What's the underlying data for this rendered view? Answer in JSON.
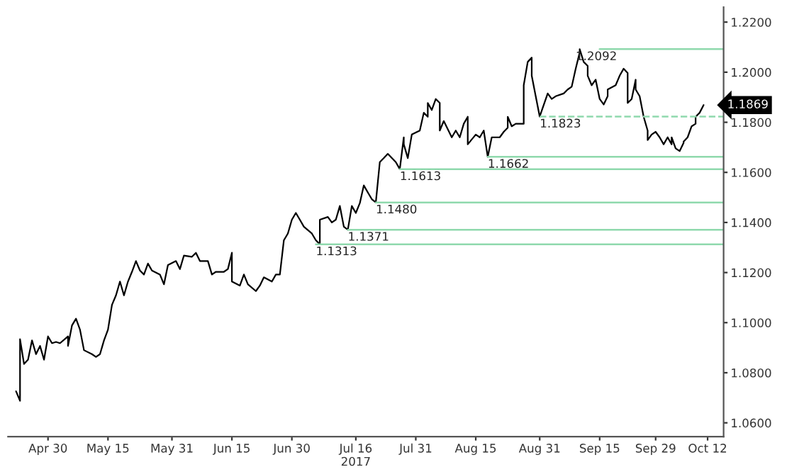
{
  "chart_data": {
    "type": "line",
    "xlim": [
      "2017-04-20",
      "2017-10-16"
    ],
    "ylim": [
      1.0545,
      1.226
    ],
    "xticks": [
      {
        "value": "2017-04-30",
        "label": "Apr 30"
      },
      {
        "value": "2017-05-15",
        "label": "May 15"
      },
      {
        "value": "2017-05-31",
        "label": "May 31"
      },
      {
        "value": "2017-06-15",
        "label": "Jun 15"
      },
      {
        "value": "2017-06-30",
        "label": "Jun 30"
      },
      {
        "value": "2017-07-16",
        "label": "Jul 16\n2017"
      },
      {
        "value": "2017-07-31",
        "label": "Jul 31"
      },
      {
        "value": "2017-08-15",
        "label": "Aug 15"
      },
      {
        "value": "2017-08-31",
        "label": "Aug 31"
      },
      {
        "value": "2017-09-15",
        "label": "Sep 15"
      },
      {
        "value": "2017-09-29",
        "label": "Sep 29"
      },
      {
        "value": "2017-10-12",
        "label": "Oct 12"
      }
    ],
    "yticks": [
      {
        "value": 1.06,
        "label": "1.0600"
      },
      {
        "value": 1.08,
        "label": "1.0800"
      },
      {
        "value": 1.1,
        "label": "1.1000"
      },
      {
        "value": 1.12,
        "label": "1.1200"
      },
      {
        "value": 1.14,
        "label": "1.1400"
      },
      {
        "value": 1.16,
        "label": "1.1600"
      },
      {
        "value": 1.18,
        "label": "1.1800"
      },
      {
        "value": 1.2,
        "label": "1.2000"
      },
      {
        "value": 1.22,
        "label": "1.2200"
      }
    ],
    "grid": false,
    "legend": false,
    "marker": "none",
    "series": [
      {
        "color": "#000000",
        "line_style": "solid",
        "x": [
          "2017-04-22",
          "2017-04-23",
          "2017-04-23",
          "2017-04-24",
          "2017-04-25",
          "2017-04-26",
          "2017-04-27",
          "2017-04-28",
          "2017-04-29",
          "2017-04-30",
          "2017-05-01",
          "2017-05-02",
          "2017-05-03",
          "2017-05-05",
          "2017-05-05",
          "2017-05-06",
          "2017-05-07",
          "2017-05-08",
          "2017-05-09",
          "2017-05-11",
          "2017-05-12",
          "2017-05-13",
          "2017-05-14",
          "2017-05-15",
          "2017-05-16",
          "2017-05-17",
          "2017-05-18",
          "2017-05-19",
          "2017-05-20",
          "2017-05-21",
          "2017-05-22",
          "2017-05-23",
          "2017-05-24",
          "2017-05-25",
          "2017-05-26",
          "2017-05-28",
          "2017-05-29",
          "2017-05-30",
          "2017-06-01",
          "2017-06-02",
          "2017-06-03",
          "2017-06-05",
          "2017-06-06",
          "2017-06-07",
          "2017-06-09",
          "2017-06-10",
          "2017-06-11",
          "2017-06-13",
          "2017-06-14",
          "2017-06-15",
          "2017-06-15",
          "2017-06-17",
          "2017-06-18",
          "2017-06-19",
          "2017-06-21",
          "2017-06-22",
          "2017-06-23",
          "2017-06-25",
          "2017-06-26",
          "2017-06-27",
          "2017-06-28",
          "2017-06-29",
          "2017-06-30",
          "2017-07-01",
          "2017-07-02",
          "2017-07-03",
          "2017-07-05",
          "2017-07-06",
          "2017-07-07",
          "2017-07-07",
          "2017-07-09",
          "2017-07-10",
          "2017-07-11",
          "2017-07-12",
          "2017-07-13",
          "2017-07-14",
          "2017-07-15",
          "2017-07-16",
          "2017-07-17",
          "2017-07-18",
          "2017-07-19",
          "2017-07-20",
          "2017-07-21",
          "2017-07-22",
          "2017-07-23",
          "2017-07-24",
          "2017-07-26",
          "2017-07-27",
          "2017-07-28",
          "2017-07-28",
          "2017-07-29",
          "2017-07-30",
          "2017-08-01",
          "2017-08-02",
          "2017-08-03",
          "2017-08-03",
          "2017-08-04",
          "2017-08-05",
          "2017-08-06",
          "2017-08-06",
          "2017-08-07",
          "2017-08-09",
          "2017-08-10",
          "2017-08-11",
          "2017-08-12",
          "2017-08-13",
          "2017-08-13",
          "2017-08-15",
          "2017-08-16",
          "2017-08-17",
          "2017-08-18",
          "2017-08-19",
          "2017-08-21",
          "2017-08-22",
          "2017-08-23",
          "2017-08-23",
          "2017-08-24",
          "2017-08-25",
          "2017-08-27",
          "2017-08-27",
          "2017-08-28",
          "2017-08-29",
          "2017-08-29",
          "2017-08-30",
          "2017-08-31",
          "2017-09-02",
          "2017-09-03",
          "2017-09-04",
          "2017-09-06",
          "2017-09-07",
          "2017-09-08",
          "2017-09-09",
          "2017-09-10",
          "2017-09-10",
          "2017-09-11",
          "2017-09-12",
          "2017-09-12",
          "2017-09-13",
          "2017-09-14",
          "2017-09-15",
          "2017-09-16",
          "2017-09-17",
          "2017-09-17",
          "2017-09-19",
          "2017-09-20",
          "2017-09-21",
          "2017-09-22",
          "2017-09-22",
          "2017-09-23",
          "2017-09-24",
          "2017-09-24",
          "2017-09-25",
          "2017-09-26",
          "2017-09-27",
          "2017-09-27",
          "2017-09-28",
          "2017-09-29",
          "2017-09-30",
          "2017-10-01",
          "2017-10-02",
          "2017-10-03",
          "2017-10-03",
          "2017-10-04",
          "2017-10-05",
          "2017-10-06",
          "2017-10-06",
          "2017-10-07",
          "2017-10-08",
          "2017-10-09",
          "2017-10-09",
          "2017-10-10",
          "2017-10-11"
        ],
        "values": [
          1.0726,
          1.0688,
          1.0934,
          1.0835,
          1.0852,
          1.0929,
          1.0874,
          1.0907,
          1.0852,
          1.0945,
          1.0918,
          1.0923,
          1.0918,
          1.0945,
          1.0907,
          1.0989,
          1.1016,
          1.0972,
          1.089,
          1.0874,
          1.0863,
          1.0874,
          1.0929,
          1.0972,
          1.1071,
          1.1109,
          1.1164,
          1.1109,
          1.1164,
          1.1203,
          1.1246,
          1.1208,
          1.1192,
          1.1236,
          1.1208,
          1.1192,
          1.1153,
          1.123,
          1.1246,
          1.1214,
          1.1268,
          1.1263,
          1.1279,
          1.1246,
          1.1246,
          1.1192,
          1.1203,
          1.1203,
          1.1214,
          1.1279,
          1.1164,
          1.1148,
          1.1192,
          1.1153,
          1.1126,
          1.1148,
          1.1181,
          1.1164,
          1.1192,
          1.1192,
          1.1329,
          1.1356,
          1.1411,
          1.1438,
          1.1411,
          1.1383,
          1.1356,
          1.1329,
          1.1313,
          1.1411,
          1.1422,
          1.14,
          1.1411,
          1.1466,
          1.1383,
          1.1371,
          1.1466,
          1.1438,
          1.1477,
          1.1548,
          1.152,
          1.1493,
          1.148,
          1.1641,
          1.1657,
          1.1674,
          1.1641,
          1.1613,
          1.174,
          1.1712,
          1.1657,
          1.1751,
          1.1767,
          1.1838,
          1.1822,
          1.1877,
          1.1849,
          1.1893,
          1.1877,
          1.1767,
          1.1805,
          1.174,
          1.1767,
          1.174,
          1.1794,
          1.1822,
          1.1712,
          1.1751,
          1.174,
          1.1767,
          1.1662,
          1.174,
          1.174,
          1.1762,
          1.1778,
          1.1822,
          1.1784,
          1.1794,
          1.1794,
          1.1948,
          1.2041,
          1.2058,
          1.1986,
          1.1904,
          1.1823,
          1.1915,
          1.1893,
          1.1904,
          1.1915,
          1.1931,
          1.1942,
          1.2014,
          1.2079,
          1.2092,
          1.2041,
          1.2025,
          1.1986,
          1.1948,
          1.197,
          1.1893,
          1.1871,
          1.1904,
          1.1931,
          1.1948,
          1.1986,
          1.2014,
          1.1997,
          1.1877,
          1.1893,
          1.197,
          1.1931,
          1.1904,
          1.1822,
          1.1767,
          1.1729,
          1.1751,
          1.1762,
          1.174,
          1.1712,
          1.174,
          1.1712,
          1.174,
          1.1696,
          1.1685,
          1.1718,
          1.1723,
          1.174,
          1.1784,
          1.1794,
          1.1822,
          1.1838,
          1.1869
        ]
      },
      {
        "color": "#8fd9ad",
        "line_style": "solid",
        "x": [
          "2017-09-15",
          "2017-10-16"
        ],
        "values": [
          1.2092,
          1.2092
        ]
      },
      {
        "color": "#8fd9ad",
        "line_style": "dashed",
        "x": [
          "2017-08-31",
          "2017-10-16"
        ],
        "values": [
          1.1823,
          1.1823
        ]
      },
      {
        "color": "#8fd9ad",
        "line_style": "solid",
        "x": [
          "2017-08-18",
          "2017-10-16"
        ],
        "values": [
          1.1662,
          1.1662
        ]
      },
      {
        "color": "#8fd9ad",
        "line_style": "solid",
        "x": [
          "2017-07-27",
          "2017-10-16"
        ],
        "values": [
          1.1613,
          1.1613
        ]
      },
      {
        "color": "#8fd9ad",
        "line_style": "solid",
        "x": [
          "2017-07-21",
          "2017-10-16"
        ],
        "values": [
          1.148,
          1.148
        ]
      },
      {
        "color": "#8fd9ad",
        "line_style": "solid",
        "x": [
          "2017-07-14",
          "2017-10-16"
        ],
        "values": [
          1.1371,
          1.1371
        ]
      },
      {
        "color": "#8fd9ad",
        "line_style": "solid",
        "x": [
          "2017-07-06",
          "2017-10-16"
        ],
        "values": [
          1.1313,
          1.1313
        ]
      }
    ],
    "annotations": [
      {
        "text": "1.2092",
        "x": "2017-09-09",
        "y": 1.2092
      },
      {
        "text": "1.1823",
        "x": "2017-08-31",
        "y": 1.1823
      },
      {
        "text": "1.1662",
        "x": "2017-08-18",
        "y": 1.1662
      },
      {
        "text": "1.1613",
        "x": "2017-07-27",
        "y": 1.1613
      },
      {
        "text": "1.1480",
        "x": "2017-07-21",
        "y": 1.148
      },
      {
        "text": "1.1371",
        "x": "2017-07-14",
        "y": 1.1371
      },
      {
        "text": "1.1313",
        "x": "2017-07-06",
        "y": 1.1313
      },
      {
        "text": "1.1869",
        "x": "2017-10-11",
        "y": 1.1869
      }
    ]
  }
}
